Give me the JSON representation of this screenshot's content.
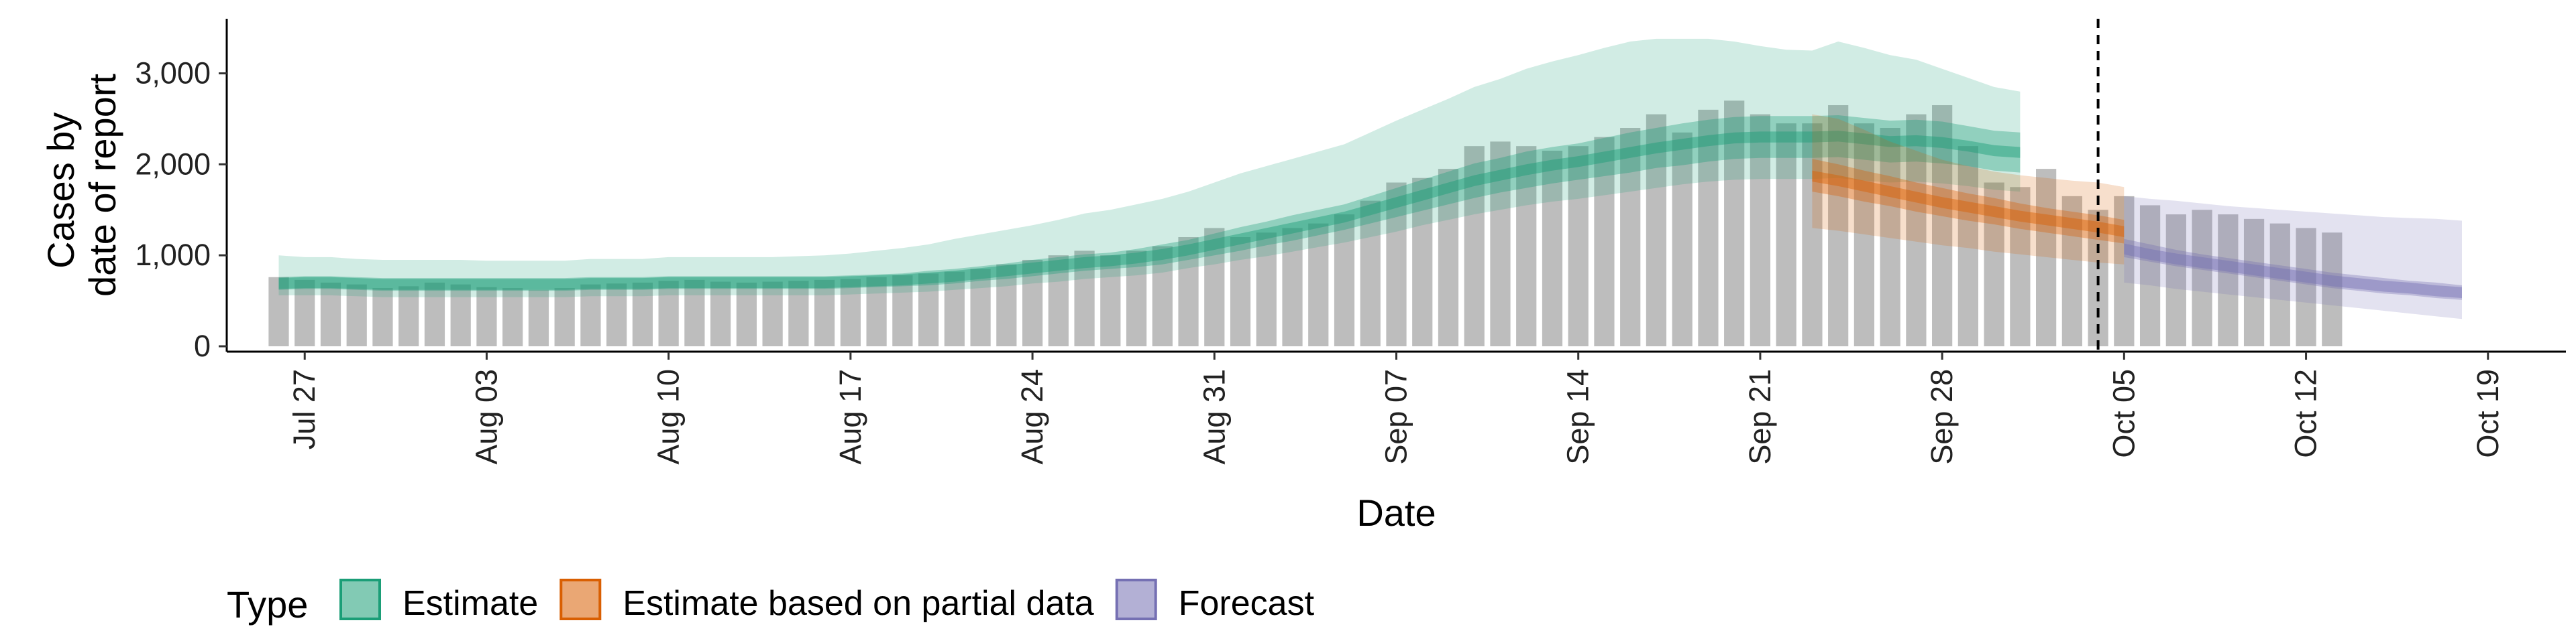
{
  "chart_data": {
    "type": "bar",
    "xlabel": "Date",
    "ylabel_lines": [
      "Cases by",
      "date of report"
    ],
    "ylim": [
      0,
      3600
    ],
    "y_ticks": [
      {
        "value": 0,
        "label": "0"
      },
      {
        "value": 1000,
        "label": "1,000"
      },
      {
        "value": 2000,
        "label": "2,000"
      },
      {
        "value": 3000,
        "label": "3,000"
      }
    ],
    "x_domain": [
      "2020-07-24",
      "2020-10-22"
    ],
    "x_ticks": [
      {
        "date": "2020-07-27",
        "label": "Jul 27"
      },
      {
        "date": "2020-08-03",
        "label": "Aug 03"
      },
      {
        "date": "2020-08-10",
        "label": "Aug 10"
      },
      {
        "date": "2020-08-17",
        "label": "Aug 17"
      },
      {
        "date": "2020-08-24",
        "label": "Aug 24"
      },
      {
        "date": "2020-08-31",
        "label": "Aug 31"
      },
      {
        "date": "2020-09-07",
        "label": "Sep 07"
      },
      {
        "date": "2020-09-14",
        "label": "Sep 14"
      },
      {
        "date": "2020-09-21",
        "label": "Sep 21"
      },
      {
        "date": "2020-09-28",
        "label": "Sep 28"
      },
      {
        "date": "2020-10-05",
        "label": "Oct 05"
      },
      {
        "date": "2020-10-12",
        "label": "Oct 12"
      },
      {
        "date": "2020-10-19",
        "label": "Oct 19"
      }
    ],
    "vline_date": "2020-10-04",
    "bars_start_date": "2020-07-26",
    "bar_values": [
      760,
      730,
      700,
      680,
      640,
      660,
      700,
      680,
      650,
      640,
      620,
      640,
      680,
      690,
      700,
      720,
      730,
      710,
      700,
      710,
      720,
      730,
      740,
      760,
      780,
      800,
      820,
      850,
      900,
      950,
      1000,
      1050,
      1000,
      1050,
      1100,
      1200,
      1300,
      1200,
      1250,
      1300,
      1350,
      1450,
      1600,
      1800,
      1850,
      1950,
      2200,
      2250,
      2200,
      2150,
      2200,
      2300,
      2400,
      2550,
      2350,
      2600,
      2700,
      2550,
      2450,
      2450,
      2650,
      2450,
      2400,
      2550,
      2650,
      2200,
      1800,
      1750,
      1950,
      1650,
      1500,
      1650,
      1550,
      1450,
      1500,
      1450,
      1400,
      1350,
      1300,
      1250
    ],
    "legend_title": "Type",
    "legend": [
      {
        "name": "Estimate",
        "color": "#1b9e77"
      },
      {
        "name": "Estimate based on partial data",
        "color": "#d95f02"
      },
      {
        "name": "Forecast",
        "color": "#7570b3"
      }
    ],
    "bar_color": "#bdbdbd",
    "series": [
      {
        "type": "Estimate",
        "color": "#1b9e77",
        "start": "2020-07-26",
        "median": [
          690,
          700,
          700,
          690,
          680,
          680,
          680,
          680,
          680,
          680,
          680,
          680,
          690,
          690,
          690,
          700,
          700,
          700,
          700,
          700,
          700,
          700,
          710,
          720,
          730,
          750,
          770,
          800,
          830,
          860,
          890,
          920,
          940,
          970,
          1010,
          1060,
          1120,
          1180,
          1240,
          1300,
          1360,
          1420,
          1500,
          1580,
          1660,
          1740,
          1820,
          1880,
          1940,
          1990,
          2030,
          2080,
          2130,
          2180,
          2220,
          2260,
          2290,
          2300,
          2300,
          2300,
          2310,
          2280,
          2250,
          2260,
          2240,
          2200,
          2150,
          2130
        ],
        "q25": [
          620,
          630,
          630,
          620,
          610,
          610,
          610,
          610,
          610,
          610,
          610,
          610,
          620,
          620,
          620,
          630,
          630,
          630,
          630,
          630,
          630,
          630,
          640,
          650,
          660,
          670,
          690,
          720,
          740,
          770,
          800,
          830,
          850,
          870,
          900,
          950,
          1000,
          1050,
          1110,
          1160,
          1220,
          1280,
          1350,
          1420,
          1490,
          1560,
          1630,
          1690,
          1740,
          1790,
          1830,
          1870,
          1910,
          1960,
          1990,
          2030,
          2060,
          2070,
          2070,
          2070,
          2080,
          2050,
          2020,
          2030,
          2010,
          1980,
          1930,
          1910
        ],
        "q75": [
          760,
          770,
          770,
          760,
          750,
          750,
          750,
          750,
          750,
          750,
          750,
          750,
          760,
          760,
          760,
          770,
          770,
          770,
          770,
          770,
          770,
          770,
          780,
          790,
          800,
          830,
          850,
          880,
          910,
          950,
          980,
          1010,
          1030,
          1070,
          1120,
          1170,
          1240,
          1310,
          1370,
          1440,
          1500,
          1560,
          1650,
          1740,
          1830,
          1920,
          2010,
          2070,
          2140,
          2190,
          2230,
          2290,
          2350,
          2400,
          2450,
          2490,
          2520,
          2530,
          2530,
          2530,
          2540,
          2510,
          2480,
          2490,
          2470,
          2420,
          2370,
          2350
        ],
        "q05": [
          560,
          560,
          560,
          550,
          540,
          540,
          540,
          540,
          540,
          540,
          540,
          540,
          550,
          550,
          550,
          560,
          560,
          560,
          560,
          560,
          560,
          560,
          570,
          580,
          590,
          600,
          620,
          640,
          660,
          690,
          710,
          740,
          760,
          780,
          810,
          860,
          900,
          950,
          990,
          1040,
          1090,
          1140,
          1200,
          1260,
          1330,
          1390,
          1450,
          1500,
          1550,
          1590,
          1620,
          1660,
          1700,
          1740,
          1780,
          1810,
          1830,
          1840,
          1840,
          1840,
          1850,
          1820,
          1800,
          1810,
          1790,
          1760,
          1720,
          1700
        ],
        "q95": [
          1000,
          980,
          980,
          960,
          950,
          950,
          950,
          950,
          940,
          940,
          940,
          940,
          960,
          960,
          960,
          980,
          980,
          980,
          980,
          980,
          990,
          1000,
          1020,
          1050,
          1080,
          1120,
          1180,
          1230,
          1280,
          1330,
          1390,
          1460,
          1500,
          1560,
          1620,
          1700,
          1800,
          1900,
          1980,
          2060,
          2140,
          2220,
          2350,
          2480,
          2600,
          2720,
          2850,
          2940,
          3050,
          3130,
          3200,
          3280,
          3350,
          3380,
          3380,
          3380,
          3350,
          3300,
          3260,
          3250,
          3350,
          3280,
          3200,
          3150,
          3050,
          2950,
          2850,
          2800
        ]
      },
      {
        "type": "Estimate based on partial data",
        "color": "#d95f02",
        "start": "2020-09-23",
        "median": [
          1870,
          1820,
          1760,
          1700,
          1640,
          1580,
          1530,
          1480,
          1430,
          1390,
          1350,
          1310,
          1260
        ],
        "q25": [
          1700,
          1650,
          1590,
          1540,
          1480,
          1430,
          1380,
          1340,
          1290,
          1250,
          1210,
          1170,
          1130
        ],
        "q75": [
          2060,
          2000,
          1930,
          1870,
          1800,
          1740,
          1680,
          1630,
          1570,
          1520,
          1480,
          1440,
          1390
        ],
        "q05": [
          1300,
          1270,
          1230,
          1190,
          1150,
          1110,
          1080,
          1040,
          1010,
          980,
          950,
          920,
          900
        ],
        "q95": [
          2550,
          2500,
          2380,
          2250,
          2150,
          2050,
          1980,
          1920,
          1880,
          1850,
          1820,
          1800,
          1750
        ]
      },
      {
        "type": "Forecast",
        "color": "#7570b3",
        "start": "2020-10-05",
        "median": [
          1070,
          1010,
          960,
          920,
          880,
          840,
          800,
          760,
          720,
          690,
          660,
          640,
          610,
          590
        ],
        "q25": [
          980,
          930,
          880,
          840,
          800,
          760,
          720,
          680,
          640,
          610,
          580,
          560,
          530,
          510
        ],
        "q75": [
          1180,
          1120,
          1060,
          1010,
          970,
          930,
          890,
          850,
          810,
          780,
          750,
          720,
          700,
          670
        ],
        "q05": [
          700,
          670,
          630,
          600,
          570,
          540,
          510,
          480,
          450,
          420,
          390,
          360,
          330,
          300
        ],
        "q95": [
          1650,
          1620,
          1600,
          1570,
          1540,
          1520,
          1500,
          1480,
          1460,
          1440,
          1420,
          1410,
          1400,
          1380
        ]
      }
    ]
  }
}
